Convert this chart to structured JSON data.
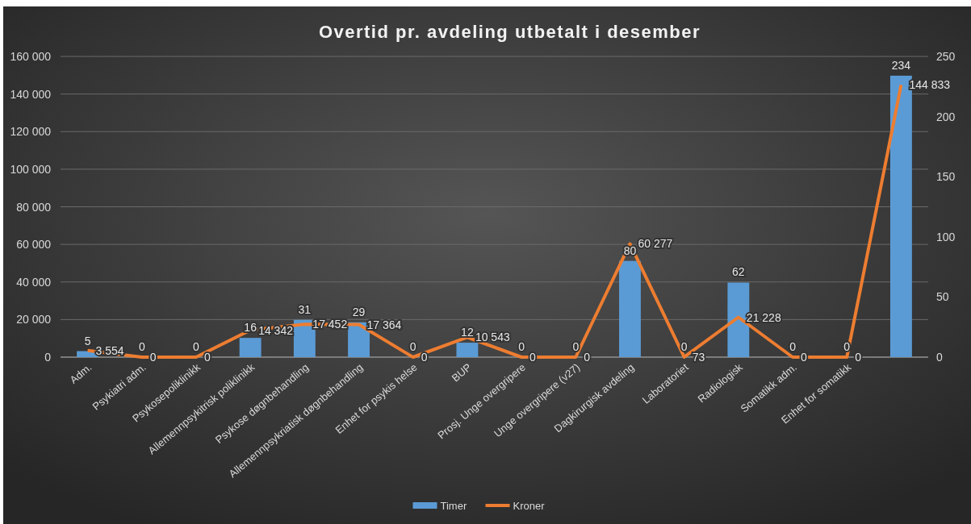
{
  "chart_data": {
    "type": "bar",
    "title": "Overtid pr. avdeling utbetalt i desember",
    "categories": [
      "Adm.",
      "Psykiatri adm.",
      "Psykosepoliklinikk",
      "Allemennpsykitrisk poliklinikk",
      "Psykose døgnbehandling",
      "Allemennpsykriatisk døgnbehandling",
      "Enhet for psykis helse",
      "BUP",
      "Prosj. Unge overgripere",
      "Unge overgripere (v27)",
      "Dagkirurgisk avdeling",
      "Laboratoriet",
      "Radiologisk",
      "Somatikk adm.",
      "Enhet for somatikk",
      null
    ],
    "series": [
      {
        "name": "Timer",
        "axis": "y2",
        "color": "#5b9bd5",
        "values": [
          5,
          0,
          0,
          16,
          31,
          29,
          0,
          12,
          0,
          0,
          80,
          0,
          62,
          0,
          0,
          234
        ],
        "value_labels": [
          "5",
          "0",
          "0",
          "16",
          "31",
          "29",
          "0",
          "12",
          "0",
          "0",
          "80",
          "0",
          "62",
          "0",
          "0",
          "234"
        ]
      },
      {
        "name": "Kroner",
        "type": "line",
        "color": "#ed7d31",
        "values": [
          3554,
          0,
          0,
          14342,
          17452,
          17364,
          0,
          10543,
          0,
          0,
          60277,
          73,
          21228,
          0,
          0,
          144833
        ],
        "value_labels": [
          "3 554",
          "0",
          "0",
          "14 342",
          "17 452",
          "17 364",
          "0",
          "10 543",
          "0",
          "0",
          "60 277",
          "73",
          "21 228",
          "0",
          "0",
          "144 833"
        ]
      }
    ],
    "ylim": [
      0,
      160000
    ],
    "yticks": [
      {
        "value": 0,
        "label": "0"
      },
      {
        "value": 20000,
        "label": "20 000"
      },
      {
        "value": 40000,
        "label": "40 000"
      },
      {
        "value": 60000,
        "label": "60 000"
      },
      {
        "value": 80000,
        "label": "80 000"
      },
      {
        "value": 100000,
        "label": "100 000"
      },
      {
        "value": 120000,
        "label": "120 000"
      },
      {
        "value": 140000,
        "label": "140 000"
      },
      {
        "value": 160000,
        "label": "160 000"
      }
    ],
    "y2lim": [
      0,
      250
    ],
    "y2ticks": [
      0,
      50,
      100,
      150,
      200,
      250
    ],
    "grid": "y",
    "legend": "bottom",
    "marker": "none",
    "line_style": "solid"
  }
}
